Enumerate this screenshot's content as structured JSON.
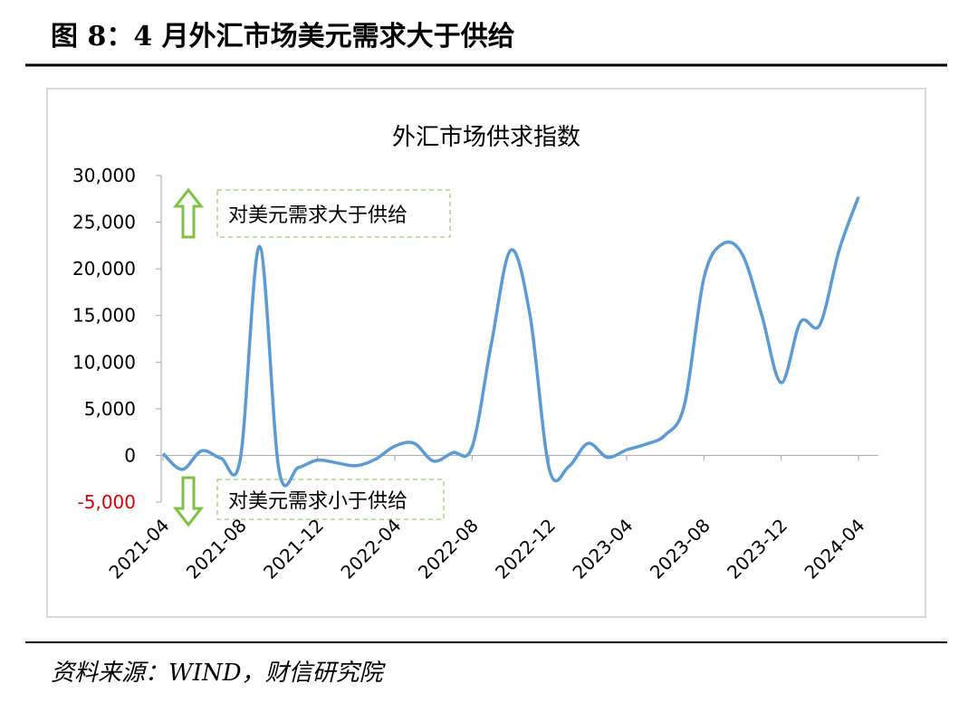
{
  "page": {
    "title": "图 8：4 月外汇市场美元需求大于供给",
    "source": "资料来源：WIND，财信研究院"
  },
  "chart_data": {
    "type": "line",
    "title": "外汇市场供求指数",
    "color": "#5b9bd5",
    "smooth": true,
    "categories": [
      "2021-04",
      null,
      null,
      null,
      "2021-08",
      null,
      null,
      null,
      "2021-12",
      null,
      null,
      null,
      "2022-04",
      null,
      null,
      null,
      "2022-08",
      null,
      null,
      null,
      "2022-12",
      null,
      null,
      null,
      "2023-04",
      null,
      null,
      null,
      "2023-08",
      null,
      null,
      null,
      "2023-12",
      null,
      null,
      null,
      "2024-04"
    ],
    "values": [
      200,
      -1500,
      500,
      -300,
      -400,
      22400,
      -1500,
      -1300,
      -500,
      -800,
      -1100,
      -400,
      1000,
      1300,
      -600,
      300,
      900,
      12000,
      22000,
      15000,
      -1500,
      -1200,
      1300,
      -200,
      600,
      1200,
      2200,
      5500,
      19000,
      22700,
      21500,
      15000,
      7800,
      14300,
      14000,
      22000,
      27700
    ],
    "ylim": [
      -5000,
      30000
    ],
    "yticks": [
      {
        "value": -5000,
        "label": "-5,000"
      },
      0,
      {
        "value": 5000,
        "label": "5,000"
      },
      {
        "value": 10000,
        "label": "10,000"
      },
      {
        "value": 15000,
        "label": "15,000"
      },
      {
        "value": 20000,
        "label": "20,000"
      },
      {
        "value": 25000,
        "label": "25,000"
      },
      {
        "value": 30000,
        "label": "30,000"
      }
    ],
    "negative_tick_color": "#e00000",
    "annotations": [
      "对美元需求大于供给",
      "对美元需求小于供给"
    ]
  }
}
